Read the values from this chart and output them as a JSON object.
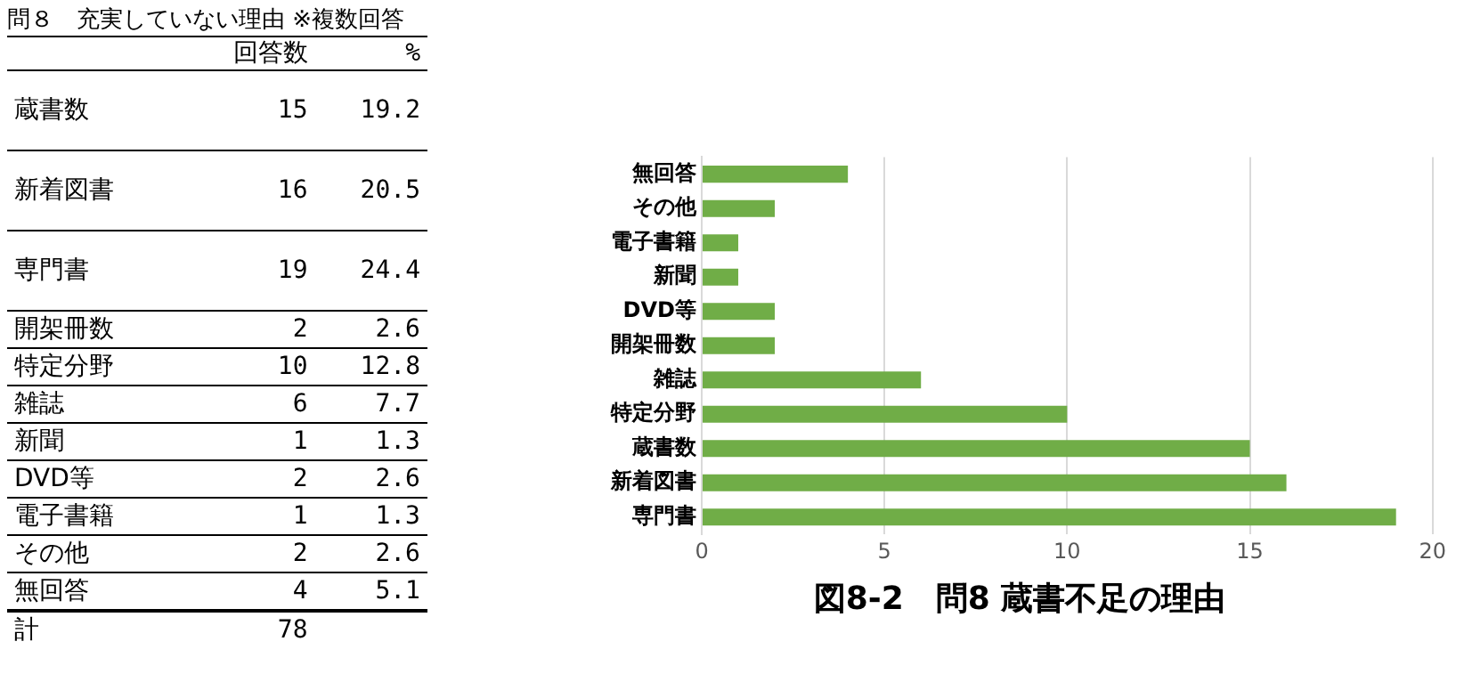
{
  "chart_data": [
    {
      "type": "other",
      "data_labels": true,
      "title": "問８　充実していない理由 ※複数回答",
      "categories": [
        "蔵書数",
        "新着図書",
        "専門書",
        "開架冊数",
        "特定分野",
        "雑誌",
        "新聞",
        "DVD等",
        "電子書籍",
        "その他",
        "無回答",
        "計"
      ],
      "series": [
        {
          "name": "回答数",
          "values": [
            15,
            16,
            19,
            2,
            10,
            6,
            1,
            2,
            1,
            2,
            4,
            78
          ]
        },
        {
          "name": "%",
          "values": [
            19.2,
            20.5,
            24.4,
            2.6,
            12.8,
            7.7,
            1.3,
            2.6,
            1.3,
            2.6,
            5.1,
            null
          ]
        }
      ]
    },
    {
      "type": "bar",
      "orientation": "horizontal",
      "title": "図8-2　問8 蔵書不足の理由",
      "categories": [
        "無回答",
        "その他",
        "電子書籍",
        "新聞",
        "DVD等",
        "開架冊数",
        "雑誌",
        "特定分野",
        "蔵書数",
        "新着図書",
        "専門書"
      ],
      "values": [
        4,
        2,
        1,
        1,
        2,
        2,
        6,
        10,
        15,
        16,
        19
      ],
      "color": "#70ad47",
      "xlim": [
        0,
        20
      ],
      "xticks": [
        0,
        5,
        10,
        15,
        20
      ],
      "grid": "x"
    }
  ]
}
